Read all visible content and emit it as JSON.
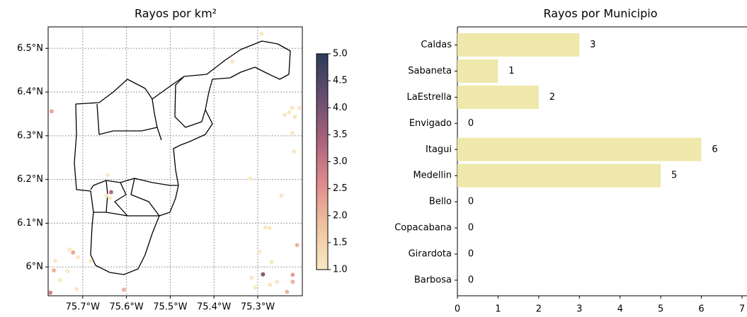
{
  "chart_data": [
    {
      "type": "scatter",
      "title": "Rayos por km²",
      "x": [
        -75.771,
        -75.291,
        -75.221,
        -75.238,
        -75.215,
        -75.228,
        -75.221,
        -75.217,
        -75.317,
        -75.643,
        -75.646,
        -75.635,
        -75.638,
        -75.273,
        -75.283,
        -75.246,
        -75.722,
        -75.763,
        -75.766,
        -75.735,
        -75.73,
        -75.711,
        -75.751,
        -75.774,
        -75.606,
        -75.714,
        -75.682,
        -75.21,
        -75.288,
        -75.22,
        -75.22,
        -75.233,
        -75.272,
        -75.306,
        -75.314,
        -75.268,
        -75.297,
        -75.205,
        -75.256,
        -75.358
      ],
      "y": [
        6.356,
        6.533,
        6.364,
        6.348,
        6.343,
        6.354,
        6.306,
        6.264,
        6.202,
        6.21,
        6.163,
        6.171,
        6.157,
        6.089,
        6.09,
        6.163,
        6.033,
        6.014,
        5.992,
        5.99,
        6.04,
        6.022,
        5.97,
        5.941,
        5.948,
        5.949,
        6.013,
        6.05,
        5.983,
        5.982,
        5.966,
        5.943,
        5.959,
        5.953,
        5.975,
        6.011,
        6.035,
        6.363,
        5.966,
        6.47
      ],
      "values": [
        2.2,
        1,
        1,
        1,
        1,
        1,
        1,
        1,
        1,
        1,
        1,
        3.2,
        1,
        1,
        1,
        1,
        2.2,
        1,
        2,
        1,
        1,
        1,
        1,
        2.8,
        2,
        1,
        1,
        2,
        3.8,
        2.3,
        2,
        2,
        1,
        1,
        1,
        1,
        1,
        1,
        1,
        1
      ],
      "xlim": [
        -75.779,
        -75.198
      ],
      "ylim": [
        5.934,
        6.549
      ],
      "xticks": [
        {
          "value": -75.7,
          "label": "75.7°W"
        },
        {
          "value": -75.6,
          "label": "75.6°W"
        },
        {
          "value": -75.5,
          "label": "75.5°W"
        },
        {
          "value": -75.4,
          "label": "75.4°W"
        },
        {
          "value": -75.3,
          "label": "75.3°W"
        }
      ],
      "yticks": [
        {
          "value": 6.0,
          "label": "6°N"
        },
        {
          "value": 6.1,
          "label": "6.1°N"
        },
        {
          "value": 6.2,
          "label": "6.2°N"
        },
        {
          "value": 6.3,
          "label": "6.3°N"
        },
        {
          "value": 6.4,
          "label": "6.4°N"
        },
        {
          "value": 6.5,
          "label": "6.5°N"
        }
      ],
      "grid": true,
      "colorbar": {
        "clim": [
          1,
          5
        ],
        "colormap": [
          "#f8e9c2",
          "#efc39f",
          "#df8b8c",
          "#a8637c",
          "#684d70",
          "#2c3b5a"
        ],
        "ticks": [
          {
            "value": 1,
            "label": "1.0"
          },
          {
            "value": 1.5,
            "label": "1.5"
          },
          {
            "value": 2,
            "label": "2.0"
          },
          {
            "value": 2.5,
            "label": "2.5"
          },
          {
            "value": 3,
            "label": "3.0"
          },
          {
            "value": 3.5,
            "label": "3.5"
          },
          {
            "value": 4,
            "label": "4.0"
          },
          {
            "value": 4.5,
            "label": "4.5"
          },
          {
            "value": 5,
            "label": "5.0"
          }
        ]
      }
    },
    {
      "type": "bar",
      "orientation": "horizontal",
      "title": "Rayos por Municipio",
      "categories": [
        "Caldas",
        "Sabaneta",
        "LaEstrella",
        "Envigado",
        "Itagui",
        "Medellin",
        "Bello",
        "Copacabana",
        "Girardota",
        "Barbosa"
      ],
      "values": [
        3,
        1,
        2,
        0,
        6,
        5,
        0,
        0,
        0,
        0
      ],
      "color": "#eee8aa",
      "xlim": [
        0,
        7
      ],
      "xticks": [
        0,
        1,
        2,
        3,
        4,
        5,
        6,
        7
      ]
    }
  ]
}
